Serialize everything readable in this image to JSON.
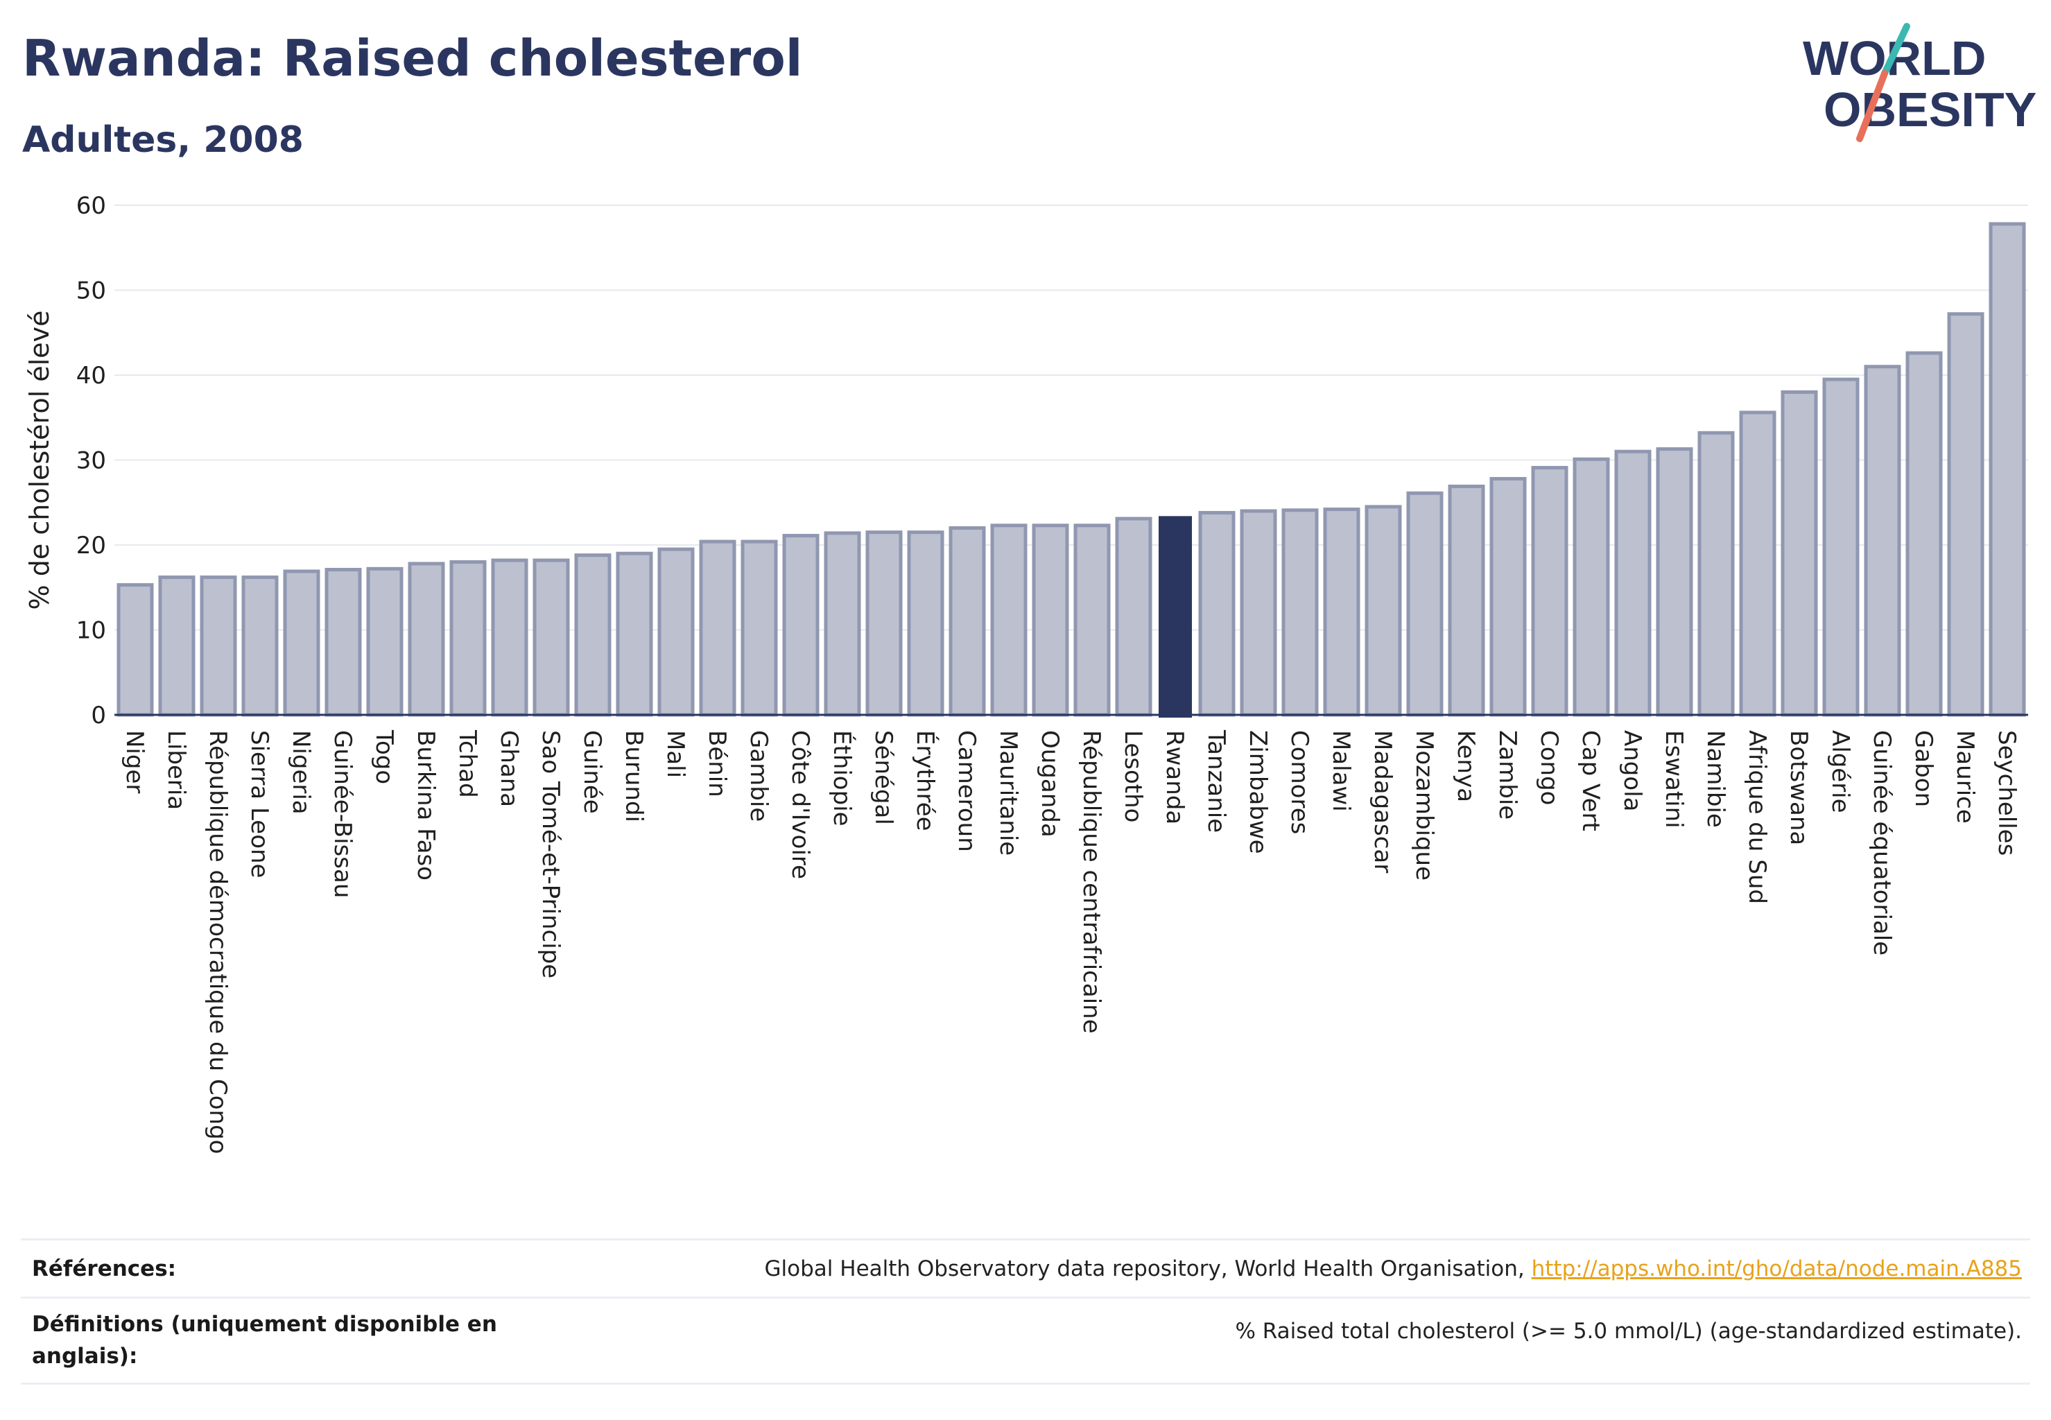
{
  "header": {
    "title": "Rwanda: Raised cholesterol",
    "subtitle": "Adultes, 2008"
  },
  "logo": {
    "line1": "WORLD",
    "line2": "OBESITY"
  },
  "colors": {
    "title": "#2b3660",
    "bar_fill": "#bcc0cf",
    "bar_stroke": "#9097b0",
    "highlight": "#2b3660",
    "link": "#e8a21a",
    "logo_teal": "#3bb8b1",
    "logo_coral": "#e8705a"
  },
  "chart_data": {
    "type": "bar",
    "ylabel": "% de cholestérol élevé",
    "xlabel": "",
    "ylim": [
      0,
      60
    ],
    "yticks": [
      0,
      10,
      20,
      30,
      40,
      50,
      60
    ],
    "grid": true,
    "highlight": "Rwanda",
    "categories": [
      "Niger",
      "Liberia",
      "République démocratique du Congo",
      "Sierra Leone",
      "Nigeria",
      "Guinée-Bissau",
      "Togo",
      "Burkina Faso",
      "Tchad",
      "Ghana",
      "Sao Tomé-et-Principe",
      "Guinée",
      "Burundi",
      "Mali",
      "Bénin",
      "Gambie",
      "Côte d'Ivoire",
      "Éthiopie",
      "Sénégal",
      "Érythrée",
      "Cameroun",
      "Mauritanie",
      "Ouganda",
      "République centrafricaine",
      "Lesotho",
      "Rwanda",
      "Tanzanie",
      "Zimbabwe",
      "Comores",
      "Malawi",
      "Madagascar",
      "Mozambique",
      "Kenya",
      "Zambie",
      "Congo",
      "Cap Vert",
      "Angola",
      "Eswatini",
      "Namibie",
      "Afrique du Sud",
      "Botswana",
      "Algérie",
      "Guinée équatoriale",
      "Gabon",
      "Maurice",
      "Seychelles"
    ],
    "values": [
      15.3,
      16.2,
      16.2,
      16.2,
      16.9,
      17.1,
      17.2,
      17.8,
      18.0,
      18.2,
      18.2,
      18.8,
      19.0,
      19.5,
      20.4,
      20.4,
      21.1,
      21.4,
      21.5,
      21.5,
      22.0,
      22.3,
      22.3,
      22.3,
      23.1,
      23.4,
      23.8,
      24.0,
      24.1,
      24.2,
      24.5,
      26.1,
      26.9,
      27.8,
      29.1,
      30.1,
      31.0,
      31.3,
      33.2,
      35.6,
      38.0,
      39.5,
      41.0,
      42.6,
      47.2,
      57.8
    ]
  },
  "footer": {
    "references_label": "Références:",
    "references_text": "Global Health Observatory data repository, World Health Organisation, ",
    "references_link": "http://apps.who.int/gho/data/node.main.A885",
    "definitions_label": "Définitions (uniquement disponible en anglais):",
    "definitions_text": "% Raised total cholesterol (>= 5.0 mmol/L) (age-standardized estimate)."
  }
}
